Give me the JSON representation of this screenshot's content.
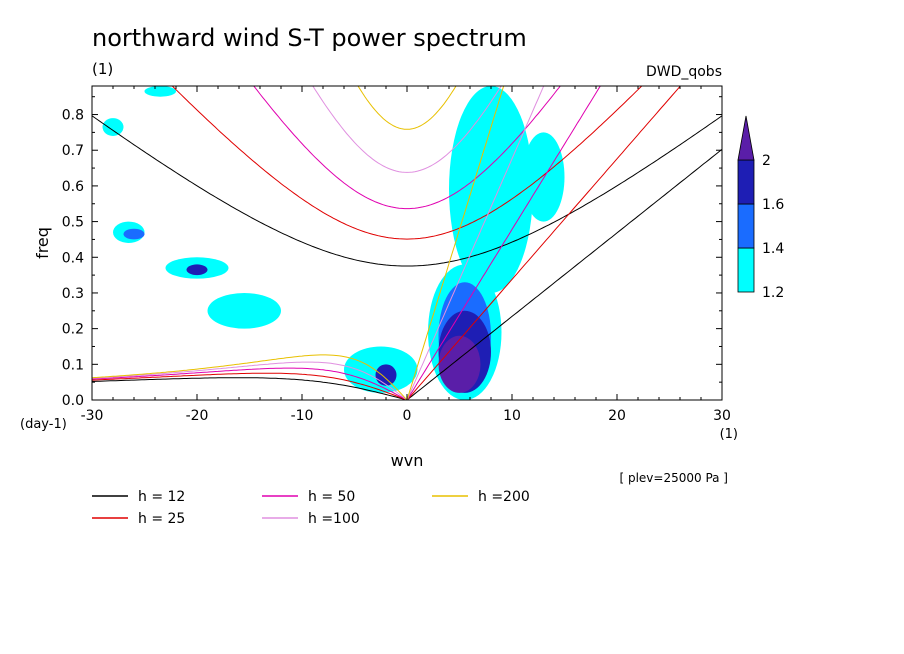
{
  "chart_data": {
    "type": "contour",
    "title": "northward wind S-T power spectrum",
    "units_label": "(1)",
    "source_label": "DWD_qobs",
    "xlabel": "wvn",
    "ylabel": "freq",
    "x_unit": "(1)",
    "y_unit": "(day-1)",
    "xlim": [
      -30,
      30
    ],
    "ylim": [
      0,
      0.88
    ],
    "x_ticks": [
      -30,
      -20,
      -10,
      0,
      10,
      20,
      30
    ],
    "y_ticks": [
      0.0,
      0.1,
      0.2,
      0.3,
      0.4,
      0.5,
      0.6,
      0.7,
      0.8
    ],
    "x_tick_labels": [
      "-30",
      "-20",
      "-10",
      "0",
      "10",
      "20",
      "30"
    ],
    "y_tick_labels": [
      "0.0",
      "0.1",
      "0.2",
      "0.3",
      "0.4",
      "0.5",
      "0.6",
      "0.7",
      "0.8"
    ],
    "annotation": "[ plev=25000 Pa ]",
    "colorbar": {
      "levels": [
        1.2,
        1.4,
        1.6,
        2
      ],
      "labels": [
        "1.2",
        "1.4",
        "1.6",
        "2"
      ],
      "colors": [
        "#00ffff",
        "#1a6cff",
        "#1e1eb4",
        "#5a1ea8"
      ]
    },
    "series": [
      {
        "name": "h = 12",
        "h": 12,
        "color": "#000000"
      },
      {
        "name": "h = 25",
        "h": 25,
        "color": "#e00000"
      },
      {
        "name": "h = 50",
        "h": 50,
        "color": "#e000b0"
      },
      {
        "name": "h =100",
        "h": 100,
        "color": "#e090e0"
      },
      {
        "name": "h =200",
        "h": 200,
        "color": "#e8c000"
      }
    ],
    "shaded_regions": [
      {
        "level": 1.2,
        "x": [
          -29,
          -27
        ],
        "y": [
          0.74,
          0.79
        ]
      },
      {
        "level": 1.2,
        "x": [
          -25,
          -22
        ],
        "y": [
          0.85,
          0.88
        ]
      },
      {
        "level": 1.2,
        "x": [
          -28,
          -25
        ],
        "y": [
          0.44,
          0.5
        ]
      },
      {
        "level": 1.4,
        "x": [
          -27,
          -25
        ],
        "y": [
          0.45,
          0.48
        ]
      },
      {
        "level": 1.2,
        "x": [
          -23,
          -17
        ],
        "y": [
          0.34,
          0.4
        ]
      },
      {
        "level": 1.6,
        "x": [
          -21,
          -19
        ],
        "y": [
          0.35,
          0.38
        ]
      },
      {
        "level": 1.2,
        "x": [
          -19,
          -12
        ],
        "y": [
          0.2,
          0.3
        ]
      },
      {
        "level": 1.2,
        "x": [
          -6,
          1
        ],
        "y": [
          0.02,
          0.15
        ]
      },
      {
        "level": 1.6,
        "x": [
          -3,
          -1
        ],
        "y": [
          0.04,
          0.1
        ]
      },
      {
        "level": 1.2,
        "x": [
          4,
          12
        ],
        "y": [
          0.3,
          0.88
        ]
      },
      {
        "level": 1.2,
        "x": [
          11,
          15
        ],
        "y": [
          0.5,
          0.75
        ]
      },
      {
        "level": 1.2,
        "x": [
          2,
          9
        ],
        "y": [
          0.0,
          0.38
        ]
      },
      {
        "level": 1.4,
        "x": [
          3,
          8
        ],
        "y": [
          0.03,
          0.33
        ]
      },
      {
        "level": 1.6,
        "x": [
          3,
          8
        ],
        "y": [
          0.02,
          0.25
        ]
      },
      {
        "level": 2,
        "x": [
          3,
          7
        ],
        "y": [
          0.02,
          0.18
        ]
      }
    ]
  }
}
